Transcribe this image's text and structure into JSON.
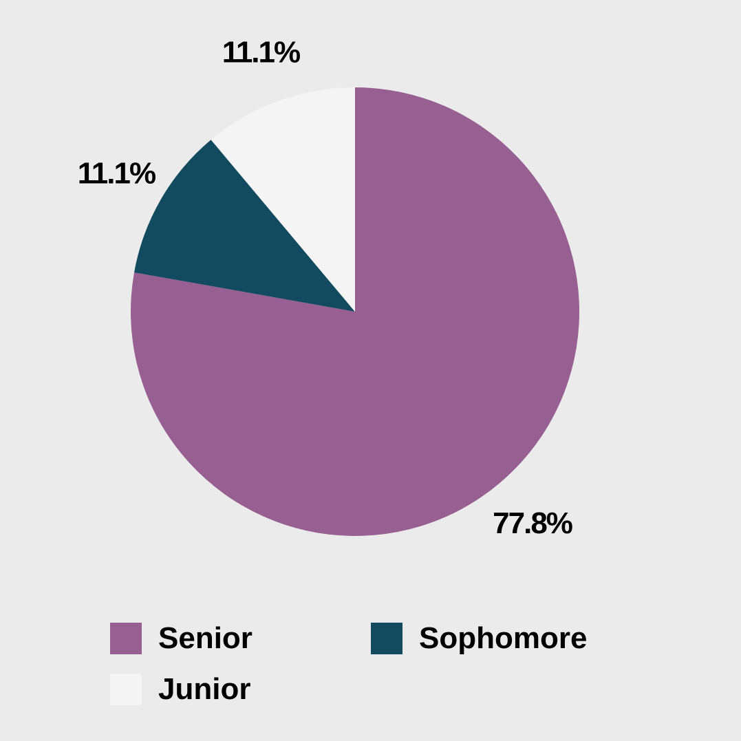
{
  "chart_data": {
    "type": "pie",
    "title": "",
    "slices": [
      {
        "label": "Senior",
        "value": 77.8,
        "display": "77.8%",
        "color": "#985f92"
      },
      {
        "label": "Sophomore",
        "value": 11.1,
        "display": "11.1%",
        "color": "#124b5f"
      },
      {
        "label": "Junior",
        "value": 11.1,
        "display": "11.1%",
        "color": "#f4f4f4"
      }
    ],
    "start": "12 o'clock",
    "direction": "clockwise",
    "legend_position": "bottom",
    "background": "#ebebeb"
  },
  "legend": {
    "items": [
      {
        "label": "Senior",
        "color": "#985f92"
      },
      {
        "label": "Sophomore",
        "color": "#124b5f"
      },
      {
        "label": "Junior",
        "color": "#f4f4f4"
      }
    ]
  }
}
